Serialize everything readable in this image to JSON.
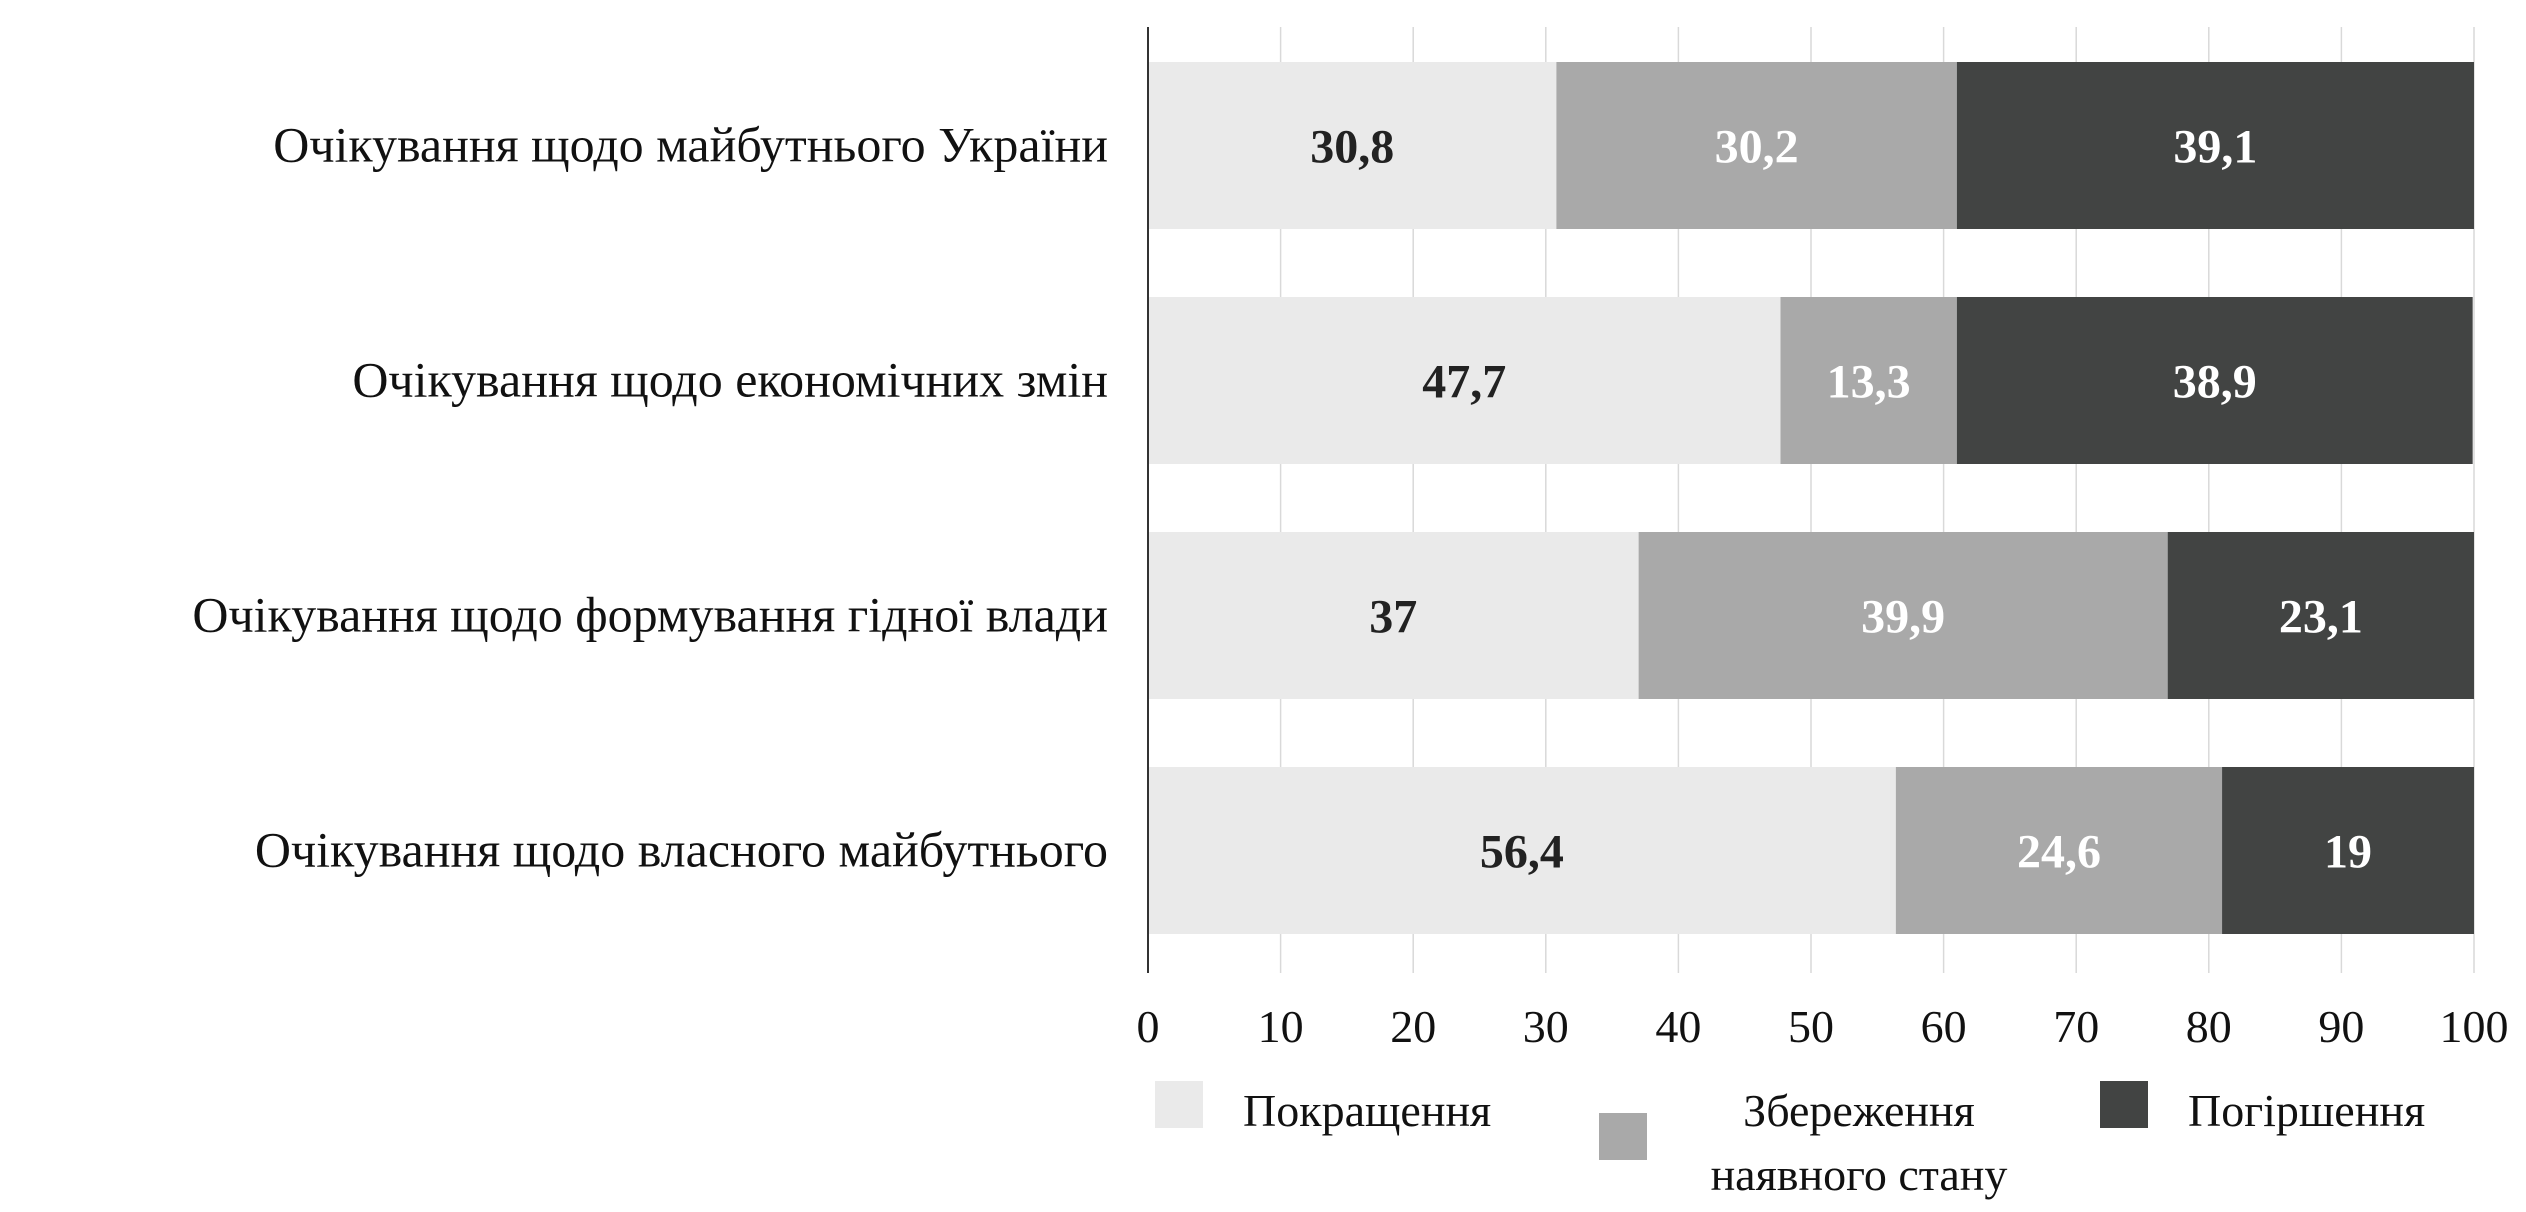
{
  "chart_data": {
    "type": "bar",
    "orientation": "horizontal",
    "stacked": true,
    "categories": [
      "Очікування щодо майбутнього України",
      "Очікування щодо економічних змін",
      "Очікування щодо формування гідної влади",
      "Очікування щодо власного майбутнього"
    ],
    "series": [
      {
        "name": "Покращення",
        "color": "#eaeaea",
        "label_color": "#222222",
        "values": [
          30.8,
          47.7,
          37,
          56.4
        ],
        "labels": [
          "30,8",
          "47,7",
          "37",
          "56,4"
        ]
      },
      {
        "name": "Збереження наявного стану",
        "color": "#a9a9a9",
        "label_color": "#ffffff",
        "values": [
          30.2,
          13.3,
          39.9,
          24.6
        ],
        "labels": [
          "30,2",
          "13,3",
          "39,9",
          "24,6"
        ]
      },
      {
        "name": "Погіршення",
        "color": "#424443",
        "label_color": "#ffffff",
        "values": [
          39.1,
          38.9,
          23.1,
          19
        ],
        "labels": [
          "39,1",
          "38,9",
          "23,1",
          "19"
        ]
      }
    ],
    "legend_lines": [
      [
        "Покращення"
      ],
      [
        "Збереження",
        "наявного стану"
      ],
      [
        "Погіршення"
      ]
    ],
    "xlim": [
      0,
      100
    ],
    "xticks": [
      "0",
      "10",
      "20",
      "30",
      "40",
      "50",
      "60",
      "70",
      "80",
      "90",
      "100"
    ],
    "grid": true,
    "legend_position": "bottom",
    "title": "",
    "xlabel": "",
    "ylabel": ""
  }
}
